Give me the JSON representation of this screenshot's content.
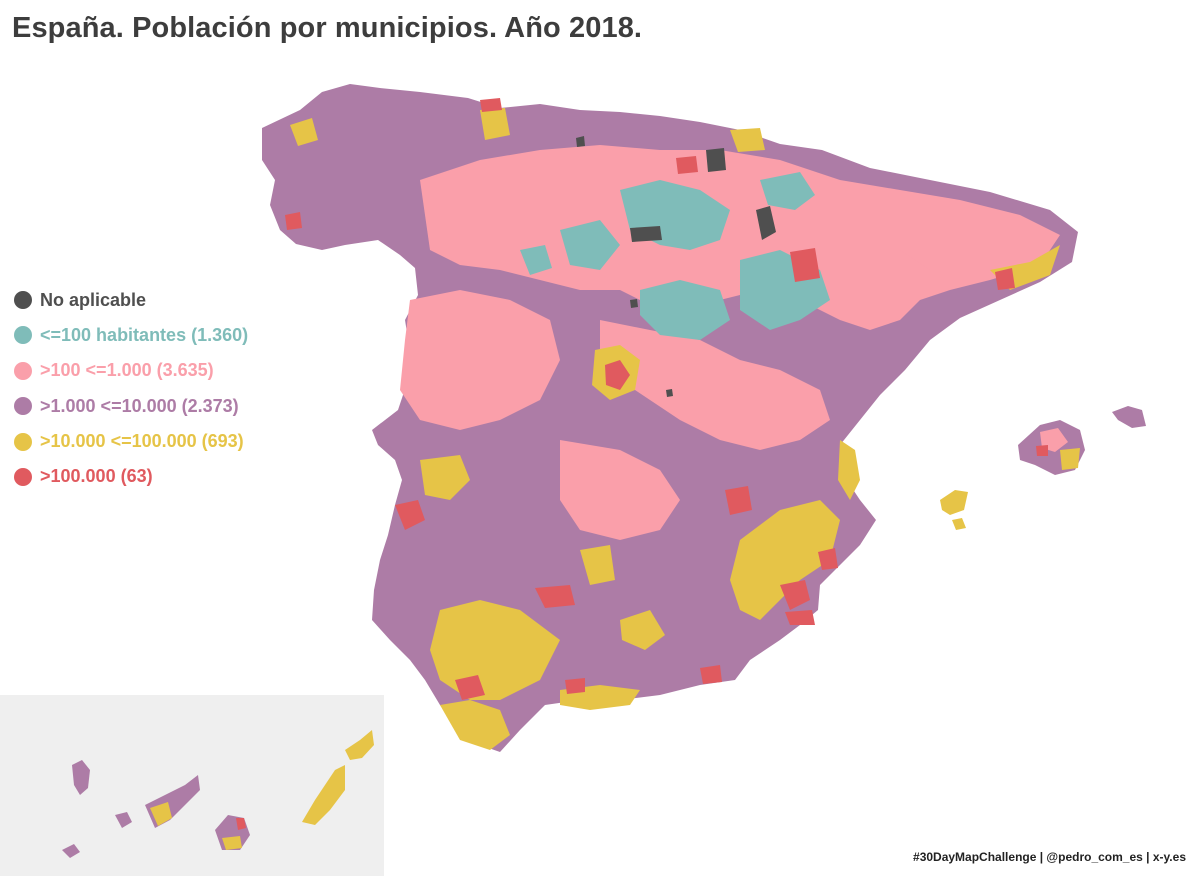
{
  "title": "España. Población por municipios. Año 2018.",
  "legend": {
    "items": [
      {
        "label": "No aplicable",
        "color": "#4f4f4f"
      },
      {
        "label": "<=100 habitantes (1.360)",
        "color": "#7fbcb9"
      },
      {
        "label": ">100 <=1.000 (3.635)",
        "color": "#fa9faa"
      },
      {
        "label": ">1.000 <=10.000 (2.373)",
        "color": "#ad7ca6"
      },
      {
        "label": ">10.000 <=100.000 (693)",
        "color": "#e6c447"
      },
      {
        "label": ">100.000 (63)",
        "color": "#e05a5f"
      }
    ]
  },
  "credits": "#30DayMapChallenge | @pedro_com_es | x-y.es",
  "map": {
    "background": "#ffffff",
    "inset_background": "#efefef"
  }
}
